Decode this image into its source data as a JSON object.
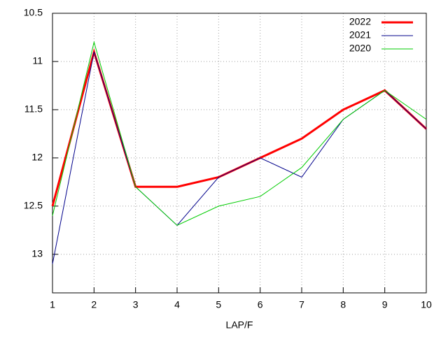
{
  "chart_data": {
    "type": "line",
    "xlabel": "LAP/F",
    "x": [
      1,
      2,
      3,
      4,
      5,
      6,
      7,
      8,
      9,
      10
    ],
    "series": [
      {
        "name": "2022",
        "color": "#ff0000",
        "width": 3,
        "values": [
          12.5,
          10.9,
          12.3,
          12.3,
          12.2,
          12.0,
          11.8,
          11.5,
          11.3,
          11.7
        ]
      },
      {
        "name": "2021",
        "color": "#00008b",
        "width": 1,
        "values": [
          13.1,
          10.9,
          12.3,
          12.7,
          12.2,
          12.0,
          12.2,
          11.6,
          11.3,
          11.7
        ]
      },
      {
        "name": "2020",
        "color": "#00cc00",
        "width": 1,
        "values": [
          12.6,
          10.8,
          12.3,
          12.7,
          12.5,
          12.4,
          12.1,
          11.6,
          11.3,
          11.6
        ]
      }
    ],
    "xlim": [
      1,
      10
    ],
    "xticks": [
      1,
      2,
      3,
      4,
      5,
      6,
      7,
      8,
      9,
      10
    ],
    "ylim": [
      10.5,
      13.4
    ],
    "yticks": [
      10.5,
      11,
      11.5,
      12,
      12.5,
      13
    ],
    "yreverse": true,
    "grid": true,
    "legend": "top-right"
  }
}
